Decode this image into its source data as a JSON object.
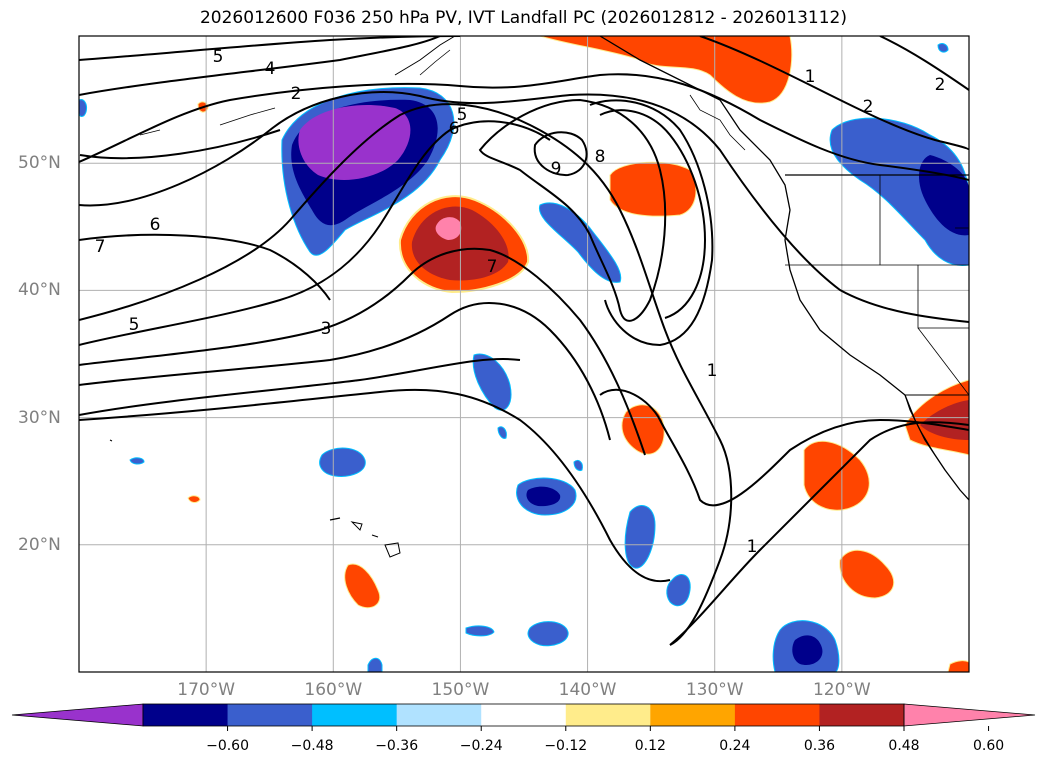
{
  "title": "2026012600 F036 250 hPa PV, IVT Landfall PC (2026012812 - 2026013112)",
  "map": {
    "extent": {
      "lon_min": -180,
      "lon_max": -110,
      "lat_min": 10,
      "lat_max": 60
    },
    "lon_ticks": [
      {
        "lon": -170,
        "label": "170°W"
      },
      {
        "lon": -160,
        "label": "160°W"
      },
      {
        "lon": -150,
        "label": "150°W"
      },
      {
        "lon": -140,
        "label": "140°W"
      },
      {
        "lon": -130,
        "label": "130°W"
      },
      {
        "lon": -120,
        "label": "120°W"
      }
    ],
    "lat_ticks": [
      {
        "lat": 20,
        "label": "20°N"
      },
      {
        "lat": 30,
        "label": "30°N"
      },
      {
        "lat": 40,
        "label": "40°N"
      },
      {
        "lat": 50,
        "label": "50°N"
      }
    ],
    "contour_labels": [
      "5",
      "4",
      "2",
      "5",
      "6",
      "6",
      "7",
      "5",
      "3",
      "7",
      "9",
      "8",
      "1",
      "1",
      "1",
      "2",
      "2"
    ]
  },
  "colorbar": {
    "colors": [
      "#9932cc",
      "#00008b",
      "#3a5fcd",
      "#00bfff",
      "#b0e2ff",
      "#ffffff",
      "#ffec8b",
      "#ffa500",
      "#ff4500",
      "#b22222",
      "#ff82ab"
    ],
    "tick_labels": [
      "−0.60",
      "−0.48",
      "−0.36",
      "−0.24",
      "−0.12",
      "0.12",
      "0.24",
      "0.36",
      "0.48",
      "0.60"
    ]
  },
  "colors": {
    "axis_label": "#808080",
    "grid": "#b0b0b0",
    "contour": "#000000",
    "coast": "#000000"
  }
}
